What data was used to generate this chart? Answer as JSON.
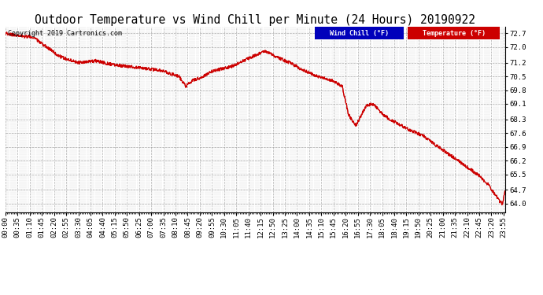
{
  "title": "Outdoor Temperature vs Wind Chill per Minute (24 Hours) 20190922",
  "copyright": "Copyright 2019 Cartronics.com",
  "y_ticks": [
    64.0,
    64.7,
    65.5,
    66.2,
    66.9,
    67.6,
    68.3,
    69.1,
    69.8,
    70.5,
    71.2,
    72.0,
    72.7
  ],
  "y_min": 63.55,
  "y_max": 73.05,
  "temp_color": "#cc0000",
  "wind_chill_color": "#cc0000",
  "wind_chill_legend_bg": "#0000bb",
  "temp_legend_bg": "#cc0000",
  "background_color": "#ffffff",
  "grid_color": "#999999",
  "title_fontsize": 10.5,
  "tick_fontsize": 6.5,
  "line_width": 0.8,
  "x_tick_step": 35
}
